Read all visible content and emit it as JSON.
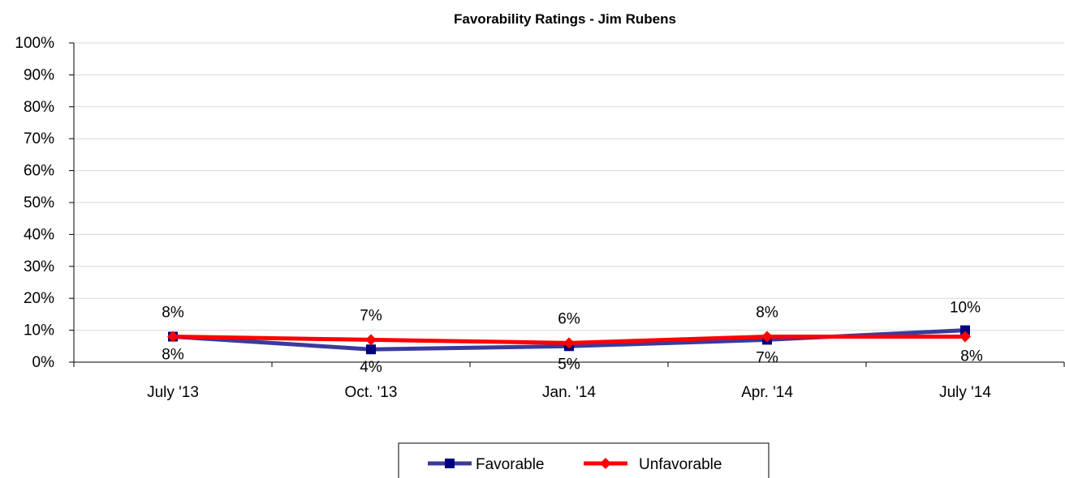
{
  "chart_data": {
    "type": "line",
    "title": "Favorability Ratings - Jim Rubens",
    "xlabel": "",
    "ylabel": "",
    "categories": [
      "July '13",
      "Oct. '13",
      "Jan. '14",
      "Apr. '14",
      "July '14"
    ],
    "y_ticks": [
      "0%",
      "10%",
      "20%",
      "30%",
      "40%",
      "50%",
      "60%",
      "70%",
      "80%",
      "90%",
      "100%"
    ],
    "ylim": [
      0,
      100
    ],
    "grid": true,
    "legend_position": "bottom",
    "series": [
      {
        "name": "Favorable",
        "values": [
          8,
          4,
          5,
          7,
          10
        ],
        "labels": [
          "8%",
          "4%",
          "5%",
          "7%",
          "10%"
        ],
        "color": "#3a3a9e",
        "marker_color": "#000080",
        "marker": "square"
      },
      {
        "name": "Unfavorable",
        "values": [
          8,
          7,
          6,
          8,
          8
        ],
        "labels": [
          "8%",
          "7%",
          "6%",
          "8%",
          "8%"
        ],
        "color": "#ff0000",
        "marker_color": "#ff0000",
        "marker": "diamond"
      }
    ]
  }
}
